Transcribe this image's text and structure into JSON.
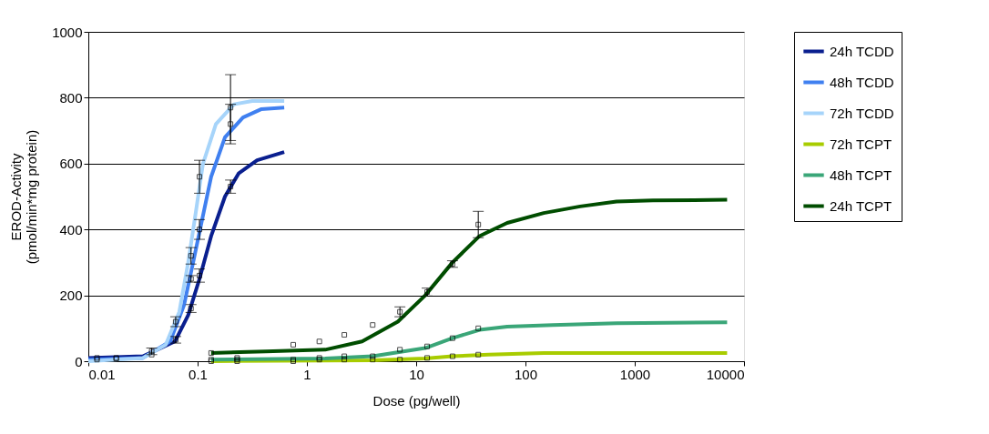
{
  "chart_data": {
    "type": "line",
    "xlabel": "Dose (pg/well)",
    "ylabel": "EROD-Activity\n(pmol/min*mg protein)",
    "log": "x",
    "xlim": [
      0.01,
      10000
    ],
    "xticks": [
      0.01,
      0.1,
      1,
      10,
      100,
      1000,
      10000
    ],
    "ylim": [
      0,
      1000
    ],
    "yticks": [
      0,
      200,
      400,
      600,
      800,
      1000
    ],
    "grid": "y",
    "legend": "right",
    "line_style": "solid",
    "series": [
      {
        "name": "24h TCDD",
        "color": "#0a1f8f",
        "x": [
          0.01,
          0.0316,
          0.062,
          0.082,
          0.104,
          0.133,
          0.178,
          0.237,
          0.35,
          0.62
        ],
        "values": [
          10,
          15,
          60,
          140,
          250,
          380,
          500,
          570,
          610,
          635
        ]
      },
      {
        "name": "48h TCDD",
        "color": "#4080f0",
        "x": [
          0.01,
          0.0316,
          0.056,
          0.075,
          0.091,
          0.11,
          0.133,
          0.178,
          0.26,
          0.38,
          0.62
        ],
        "values": [
          5,
          10,
          60,
          170,
          300,
          430,
          560,
          680,
          740,
          765,
          770
        ]
      },
      {
        "name": "72h TCDD",
        "color": "#a6d4fa",
        "x": [
          0.01,
          0.0316,
          0.051,
          0.068,
          0.082,
          0.096,
          0.112,
          0.147,
          0.215,
          0.316,
          0.62
        ],
        "values": [
          0,
          10,
          50,
          150,
          300,
          450,
          600,
          720,
          780,
          790,
          790
        ]
      },
      {
        "name": "72h TCPT",
        "color": "#a8cc00",
        "x": [
          0.133,
          4.0,
          12.1,
          21.5,
          46,
          147,
          7000
        ],
        "values": [
          0,
          3,
          8,
          15,
          20,
          25,
          25
        ]
      },
      {
        "name": "48h TCPT",
        "color": "#3aa678",
        "x": [
          0.133,
          1.47,
          4.0,
          12.1,
          21.5,
          38,
          68,
          178,
          681,
          7000
        ],
        "values": [
          5,
          8,
          15,
          40,
          70,
          95,
          105,
          110,
          115,
          118
        ]
      },
      {
        "name": "24h TCPT",
        "color": "#004d00",
        "x": [
          0.133,
          0.42,
          1.47,
          3.2,
          6.8,
          12.1,
          21.5,
          38,
          68,
          147,
          316,
          681,
          1468,
          7000
        ],
        "values": [
          25,
          30,
          35,
          60,
          120,
          200,
          300,
          380,
          420,
          450,
          470,
          485,
          488,
          490
        ]
      },
      {
        "type": "scatter",
        "marker": "square",
        "color": "#000000",
        "x": [
          0.012,
          0.012,
          0.018,
          0.018,
          0.038,
          0.038,
          0.063,
          0.063,
          0.087,
          0.087,
          0.087,
          0.104,
          0.104,
          0.104,
          0.2,
          0.2,
          0.2,
          0.133,
          0.23,
          0.75,
          1.3,
          2.2,
          4.0,
          7.1,
          12.6,
          21.5,
          37,
          0.133,
          0.23,
          0.75,
          1.3,
          2.2,
          4.0,
          7.1,
          12.6,
          21.5,
          37,
          0.133,
          0.23,
          0.75,
          1.3,
          2.2,
          4.0,
          7.1,
          12.6,
          21.5,
          37
        ],
        "values": [
          5,
          10,
          10,
          8,
          30,
          20,
          120,
          65,
          160,
          250,
          320,
          260,
          400,
          560,
          530,
          720,
          770,
          25,
          10,
          50,
          60,
          80,
          110,
          150,
          210,
          295,
          415,
          5,
          5,
          5,
          10,
          15,
          15,
          35,
          45,
          70,
          100,
          0,
          0,
          0,
          5,
          5,
          5,
          5,
          10,
          15,
          20
        ],
        "errors": [
          null,
          null,
          null,
          null,
          10,
          null,
          15,
          10,
          12,
          10,
          25,
          20,
          30,
          50,
          20,
          60,
          100,
          null,
          null,
          null,
          null,
          null,
          null,
          15,
          12,
          10,
          40,
          null,
          null,
          null,
          null,
          null,
          null,
          null,
          null,
          null,
          null,
          null,
          null,
          null,
          null,
          null,
          null,
          null,
          null,
          null,
          null
        ]
      }
    ]
  }
}
